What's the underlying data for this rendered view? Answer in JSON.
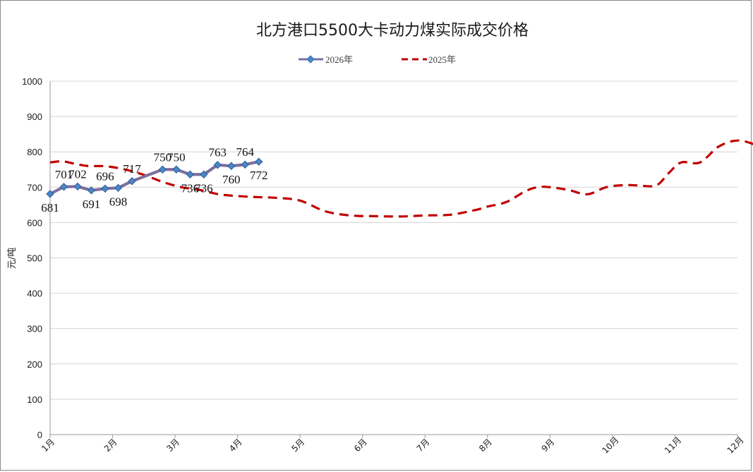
{
  "chart_data": {
    "type": "line",
    "title": "北方港口5500大卡动力煤实际成交价格",
    "xlabel": "",
    "ylabel": "元/吨",
    "ylim": [
      0,
      1000
    ],
    "yticks": [
      0,
      100,
      200,
      300,
      400,
      500,
      600,
      700,
      800,
      900,
      1000
    ],
    "categories": [
      "1月",
      "2月",
      "3月",
      "4月",
      "5月",
      "6月",
      "7月",
      "8月",
      "9月",
      "10月",
      "11月",
      "12月"
    ],
    "grid": true,
    "legend_position": "top",
    "series": [
      {
        "name": "2026年",
        "color": "#6f73a8",
        "marker_color": "#4a86c8",
        "style": "solid-with-diamond-markers",
        "x": [
          0.0,
          0.22,
          0.44,
          0.66,
          0.88,
          1.09,
          1.31,
          1.8,
          2.02,
          2.24,
          2.46,
          2.68,
          2.9,
          3.12,
          3.34
        ],
        "values": [
          681,
          701,
          702,
          691,
          696,
          698,
          717,
          750,
          750,
          736,
          736,
          763,
          760,
          764,
          772
        ]
      },
      {
        "name": "2025年",
        "color": "#c00000",
        "style": "dashed",
        "x": [
          0.0,
          0.2,
          0.4,
          0.6,
          0.9,
          1.2,
          1.5,
          1.8,
          2.1,
          2.4,
          2.7,
          3.0,
          3.3,
          3.6,
          4.0,
          4.4,
          4.8,
          5.2,
          5.6,
          6.0,
          6.4,
          6.8,
          7.0,
          7.3,
          7.6,
          7.8,
          8.0,
          8.3,
          8.6,
          8.9,
          9.2,
          9.4,
          9.7,
          9.9,
          10.1,
          10.4,
          10.7,
          11.0,
          11.3,
          11.5
        ],
        "values": [
          770,
          773,
          766,
          760,
          759,
          750,
          735,
          715,
          700,
          692,
          680,
          675,
          672,
          670,
          662,
          632,
          620,
          618,
          617,
          620,
          622,
          635,
          645,
          658,
          688,
          700,
          700,
          692,
          680,
          700,
          706,
          705,
          705,
          740,
          770,
          770,
          815,
          832,
          818,
          790
        ]
      }
    ]
  }
}
